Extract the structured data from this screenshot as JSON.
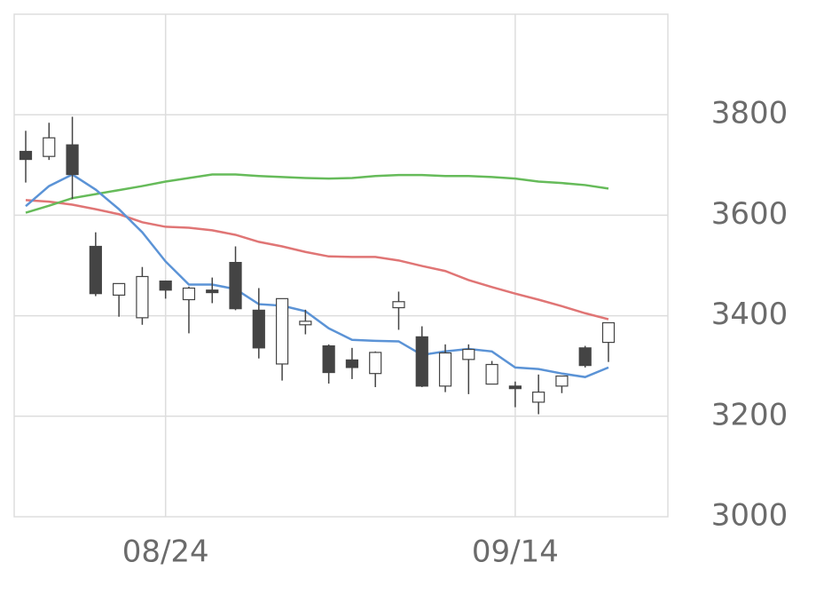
{
  "chart_data": {
    "type": "candlestick",
    "categories": [
      null,
      null,
      null,
      null,
      null,
      null,
      "08/24",
      null,
      null,
      null,
      null,
      null,
      null,
      null,
      null,
      null,
      null,
      null,
      null,
      null,
      null,
      "09/14",
      null,
      null,
      null,
      null
    ],
    "open": [
      3727,
      3717,
      3740,
      3538,
      3441,
      3396,
      3469,
      3432,
      3451,
      3506,
      3411,
      3304,
      3382,
      3340,
      3312,
      3285,
      3416,
      3358,
      3260,
      3313,
      3264,
      3260,
      3228,
      3260,
      3336,
      3347
    ],
    "high": [
      3768,
      3784,
      3796,
      3566,
      3464,
      3497,
      3469,
      3458,
      3476,
      3538,
      3455,
      3434,
      3412,
      3343,
      3336,
      3329,
      3448,
      3379,
      3343,
      3343,
      3310,
      3269,
      3283,
      3280,
      3340,
      3386
    ],
    "low": [
      3665,
      3710,
      3632,
      3439,
      3398,
      3382,
      3434,
      3365,
      3425,
      3411,
      3315,
      3271,
      3363,
      3265,
      3274,
      3258,
      3372,
      3258,
      3248,
      3244,
      3264,
      3218,
      3204,
      3246,
      3297,
      3308
    ],
    "close": [
      3711,
      3754,
      3681,
      3444,
      3464,
      3478,
      3451,
      3455,
      3446,
      3414,
      3336,
      3434,
      3389,
      3287,
      3297,
      3327,
      3428,
      3260,
      3326,
      3333,
      3303,
      3255,
      3248,
      3280,
      3301,
      3386
    ],
    "up_color": "#ffffff",
    "down_color": "#444444",
    "candle_stroke": "#444444",
    "lines": [
      {
        "color": "#e07575",
        "values": [
          3630,
          3627,
          3621,
          3612,
          3602,
          3586,
          3577,
          3575,
          3570,
          3561,
          3547,
          3538,
          3527,
          3518,
          3517,
          3517,
          3510,
          3499,
          3489,
          3471,
          3457,
          3444,
          3432,
          3419,
          3405,
          3393
        ]
      },
      {
        "color": "#66bb5a",
        "values": [
          3605,
          3619,
          3634,
          3642,
          3650,
          3658,
          3667,
          3674,
          3681,
          3681,
          3678,
          3676,
          3674,
          3673,
          3674,
          3678,
          3680,
          3680,
          3678,
          3678,
          3676,
          3673,
          3667,
          3664,
          3660,
          3653
        ]
      },
      {
        "color": "#5b93d6",
        "values": [
          3618,
          3658,
          3681,
          3651,
          3612,
          3566,
          3508,
          3462,
          3462,
          3453,
          3423,
          3420,
          3409,
          3375,
          3352,
          3350,
          3349,
          3322,
          3329,
          3334,
          3329,
          3297,
          3294,
          3285,
          3278,
          3297
        ]
      }
    ],
    "ylim": [
      3000,
      4000
    ],
    "yticks": [
      3000,
      3200,
      3400,
      3600,
      3800
    ],
    "grid": true
  }
}
